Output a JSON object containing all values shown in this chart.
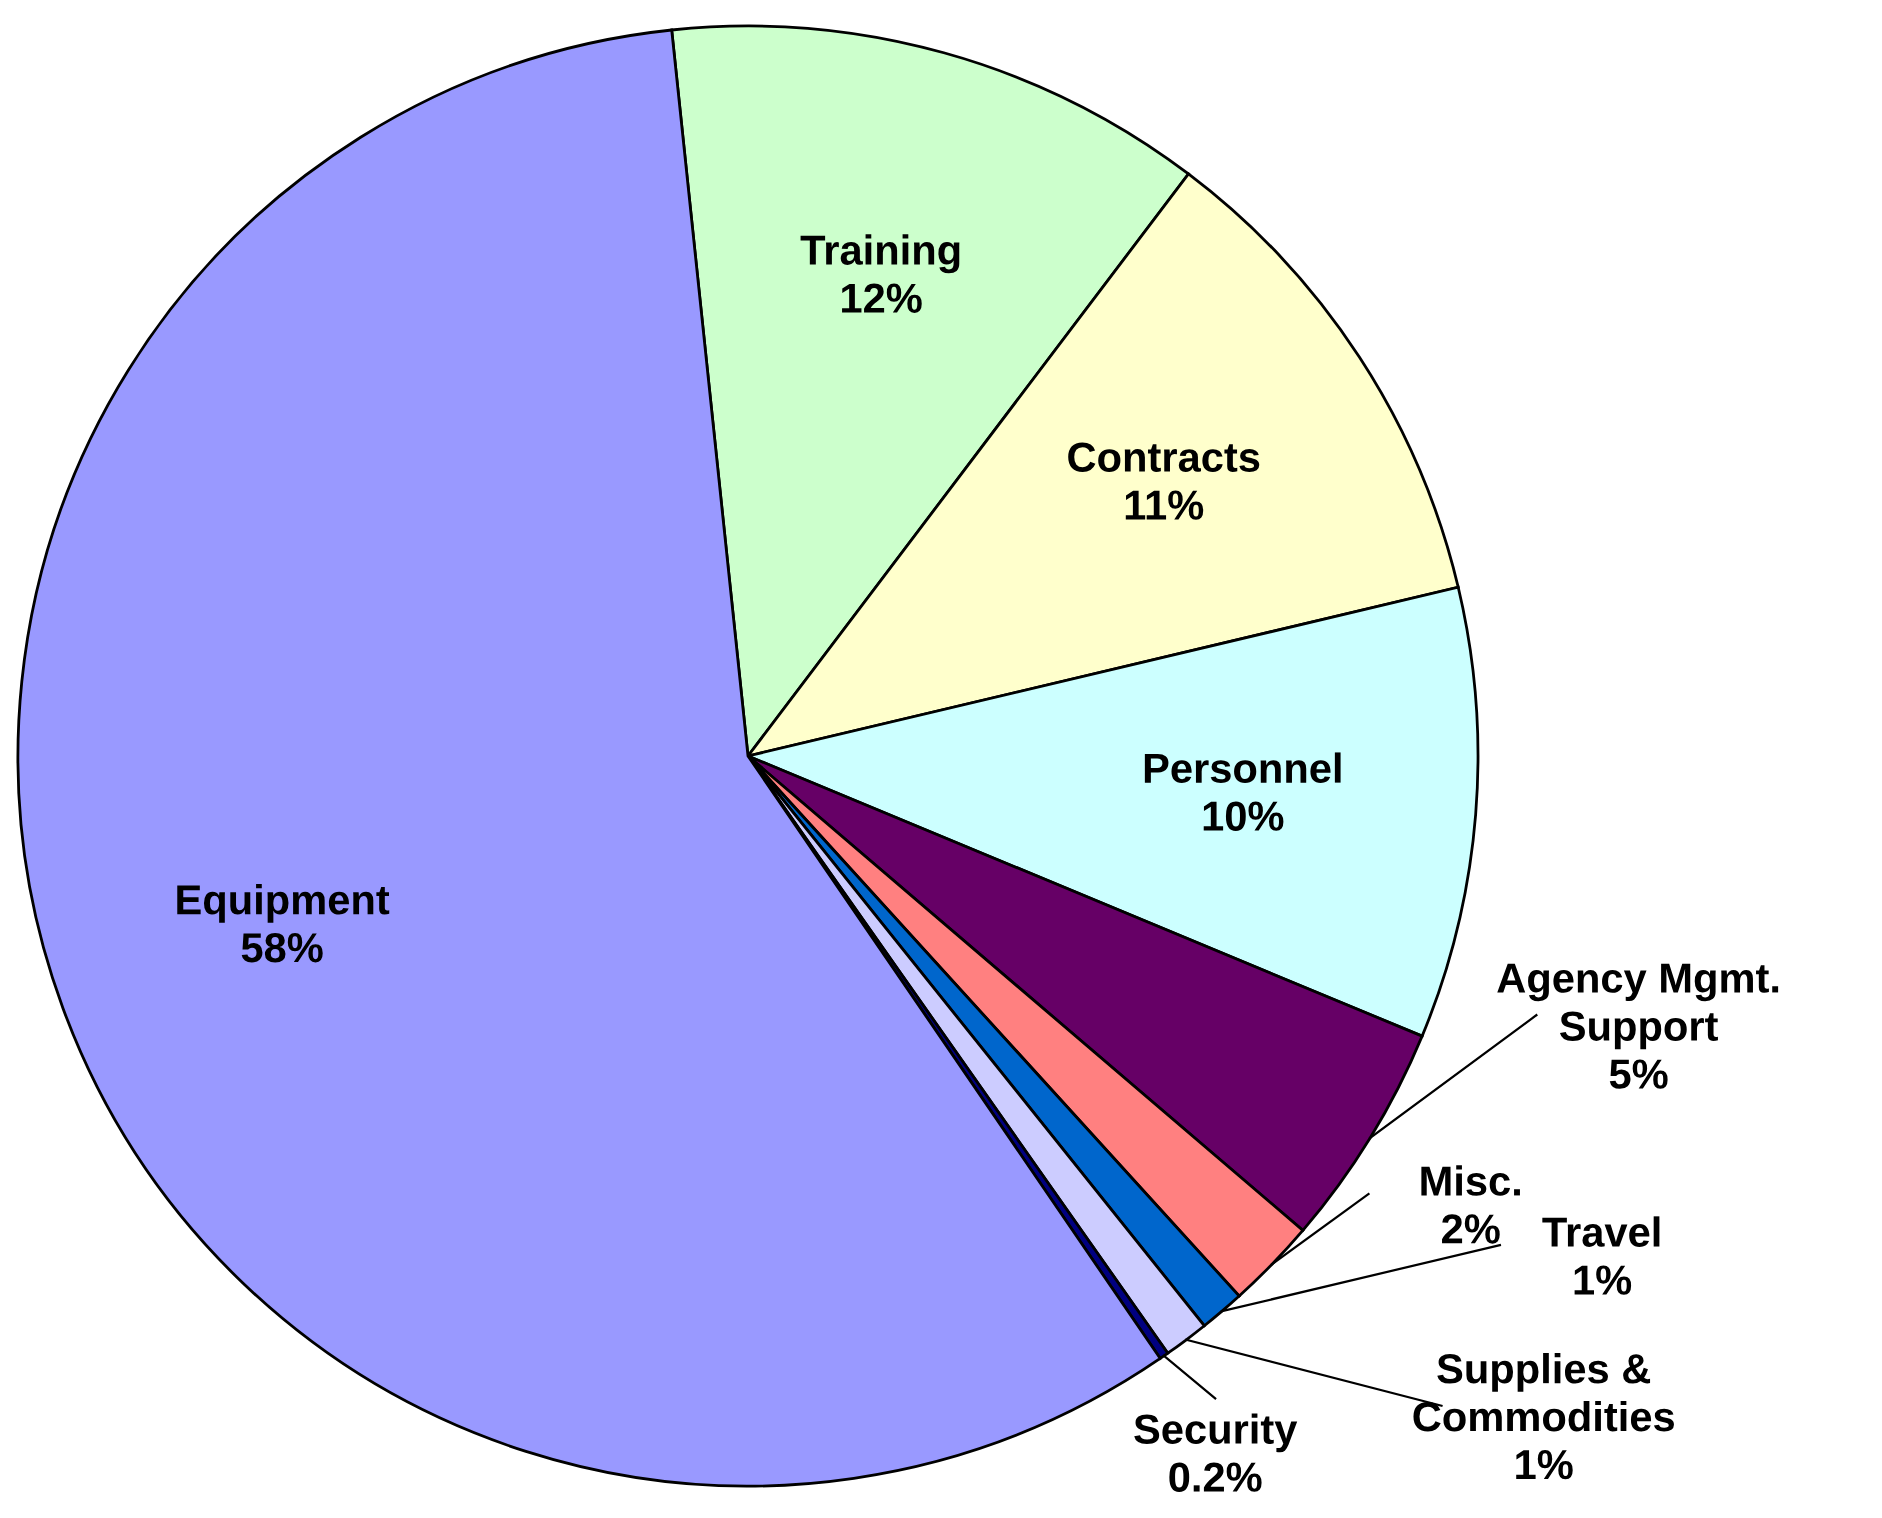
{
  "chart_data": {
    "type": "pie",
    "categories": [
      "Training",
      "Contracts",
      "Personnel",
      "Agency Mgmt. Support",
      "Misc.",
      "Travel",
      "Supplies & Commodities",
      "Security",
      "Equipment"
    ],
    "values": [
      12,
      11,
      10,
      5,
      2,
      1,
      1,
      0.2,
      58
    ],
    "colors": [
      "#ccffcc",
      "#ffffcc",
      "#ccffff",
      "#660066",
      "#ff8080",
      "#0066cc",
      "#ccccff",
      "#000080",
      "#9999ff"
    ],
    "value_labels": [
      "12%",
      "11%",
      "10%",
      "5%",
      "2%",
      "1%",
      "1%",
      "0.2%",
      "58%"
    ]
  }
}
